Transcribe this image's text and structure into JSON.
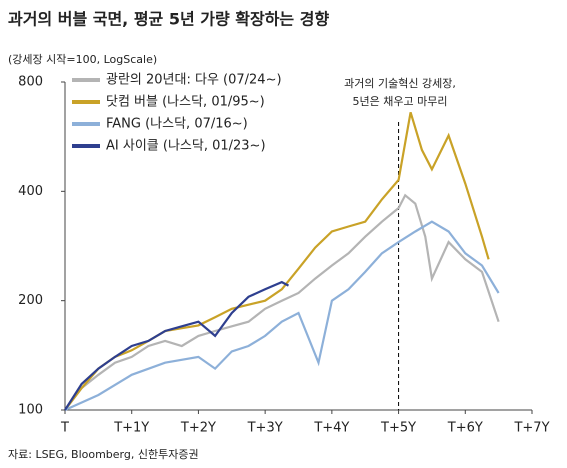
{
  "chart_data": {
    "type": "line",
    "title": "과거의 버블 국면, 평균 5년 가량 확장하는 경향",
    "y_label": "(강세장 시작=100, LogScale)",
    "source": "자료: LSEG, Bloomberg, 신한투자증권",
    "annotation": [
      "과거의 기술혁신 강세장,",
      "5년은 채우고 마무리"
    ],
    "annotation_x": 5,
    "log_scale": true,
    "legend": "upper left",
    "xlim": [
      0,
      7
    ],
    "xticks": [
      {
        "value": 0,
        "label": "T"
      },
      {
        "value": 1,
        "label": "T+1Y"
      },
      {
        "value": 2,
        "label": "T+2Y"
      },
      {
        "value": 3,
        "label": "T+3Y"
      },
      {
        "value": 4,
        "label": "T+4Y"
      },
      {
        "value": 5,
        "label": "T+5Y"
      },
      {
        "value": 6,
        "label": "T+6Y"
      },
      {
        "value": 7,
        "label": "T+7Y"
      }
    ],
    "ylim": [
      100,
      800
    ],
    "yticks": [
      100,
      200,
      400,
      800
    ],
    "series": [
      {
        "name": "광란의 20년대: 다우 (07/24~)",
        "color": "#b4b4b4",
        "x": [
          0,
          0.25,
          0.5,
          0.75,
          1,
          1.25,
          1.5,
          1.75,
          2,
          2.25,
          2.5,
          2.75,
          3,
          3.25,
          3.5,
          3.75,
          4,
          4.25,
          4.5,
          4.75,
          5,
          5.1,
          5.25,
          5.4,
          5.5,
          5.75,
          6,
          6.25,
          6.5
        ],
        "values": [
          100,
          115,
          125,
          135,
          140,
          150,
          155,
          150,
          160,
          165,
          170,
          175,
          190,
          200,
          210,
          230,
          250,
          270,
          300,
          330,
          360,
          390,
          370,
          300,
          230,
          290,
          260,
          240,
          175
        ]
      },
      {
        "name": "닷컴 버블 (나스닥, 01/95~)",
        "color": "#c9a227",
        "x": [
          0,
          0.25,
          0.5,
          0.75,
          1,
          1.25,
          1.5,
          1.75,
          2,
          2.25,
          2.5,
          2.75,
          3,
          3.25,
          3.5,
          3.75,
          4,
          4.25,
          4.5,
          4.75,
          5,
          5.18,
          5.35,
          5.5,
          5.75,
          6,
          6.25,
          6.35
        ],
        "values": [
          100,
          115,
          130,
          140,
          146,
          155,
          165,
          168,
          171,
          180,
          190,
          195,
          200,
          215,
          245,
          280,
          310,
          320,
          330,
          380,
          430,
          660,
          520,
          460,
          570,
          420,
          300,
          260
        ]
      },
      {
        "name": "FANG (나스닥, 07/16~)",
        "color": "#8db0d9",
        "x": [
          0,
          0.5,
          1,
          1.5,
          2,
          2.25,
          2.5,
          2.75,
          3,
          3.25,
          3.5,
          3.8,
          4,
          4.25,
          4.5,
          4.75,
          5,
          5.25,
          5.5,
          5.75,
          6,
          6.25,
          6.5
        ],
        "values": [
          100,
          110,
          125,
          135,
          140,
          130,
          145,
          150,
          160,
          175,
          185,
          135,
          200,
          215,
          240,
          270,
          290,
          310,
          330,
          310,
          270,
          250,
          210
        ]
      },
      {
        "name": "AI 사이클 (나스닥, 01/23~)",
        "color": "#2e3f8f",
        "x": [
          0,
          0.25,
          0.5,
          0.75,
          1,
          1.25,
          1.5,
          1.75,
          2,
          2.25,
          2.5,
          2.75,
          3,
          3.25,
          3.35
        ],
        "values": [
          100,
          118,
          130,
          140,
          150,
          155,
          165,
          170,
          175,
          160,
          185,
          205,
          215,
          225,
          220
        ]
      }
    ]
  }
}
